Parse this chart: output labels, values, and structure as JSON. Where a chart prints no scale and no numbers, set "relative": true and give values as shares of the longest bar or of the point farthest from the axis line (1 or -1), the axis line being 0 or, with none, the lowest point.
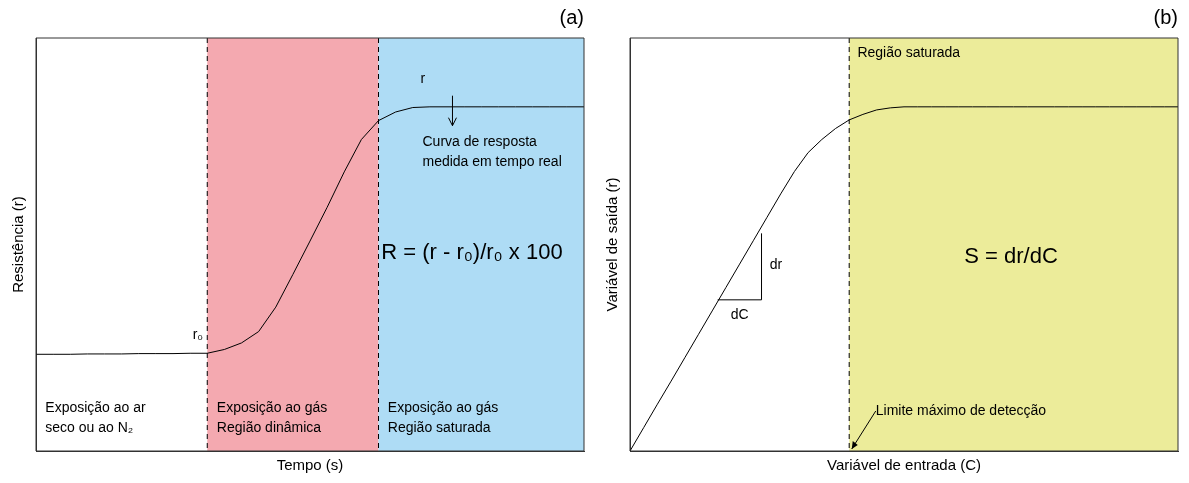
{
  "chart_data": [
    {
      "type": "line",
      "title": "(a)",
      "xlabel": "Tempo (s)",
      "ylabel": "Resistência (r)",
      "relative": true,
      "tick_labels": false,
      "legend": false,
      "marker": "none",
      "line_style": "solid",
      "categories": [
        null,
        null,
        null,
        null,
        null,
        null,
        null,
        null,
        null,
        null,
        null,
        null,
        null,
        null,
        null,
        null,
        null,
        null,
        null,
        null,
        null,
        null,
        null,
        null,
        null,
        null,
        null,
        null,
        null,
        null,
        null,
        null,
        null
      ],
      "series": [
        {
          "color": "#000000",
          "values": [
            0.281,
            0.281,
            0.281,
            0.282,
            0.282,
            0.282,
            0.283,
            0.283,
            0.283,
            0.284,
            0.284,
            0.295,
            0.314,
            0.347,
            0.418,
            0.513,
            0.61,
            0.708,
            0.811,
            0.905,
            0.96,
            0.985,
            0.998,
            1,
            1,
            1,
            1,
            1,
            1,
            1,
            1,
            1,
            1
          ]
        }
      ],
      "annotations": [
        "r₀",
        "r",
        "Curva de resposta\nmedida em tempo real",
        "R = (r - r₀)/r₀ x 100",
        "Exposição ao ar\nseco ou ao N₂",
        "Exposição ao gás\nRegião dinâmica",
        "Exposição ao gás\nRegião saturada"
      ]
    },
    {
      "type": "line",
      "title": "(b)",
      "xlabel": "Variável de entrada (C)",
      "ylabel": "Variável de saída (r)",
      "relative": true,
      "tick_labels": false,
      "legend": false,
      "marker": "none",
      "line_style": "solid",
      "categories": [
        null,
        null,
        null,
        null,
        null,
        null,
        null,
        null,
        null,
        null,
        null,
        null,
        null,
        null,
        null,
        null,
        null,
        null,
        null,
        null,
        null,
        null,
        null,
        null,
        null,
        null,
        null,
        null,
        null,
        null,
        null,
        null,
        null,
        null,
        null,
        null,
        null,
        null,
        null,
        null,
        null
      ],
      "series": [
        {
          "color": "#000000",
          "values": [
            0,
            0.068,
            0.136,
            0.203,
            0.271,
            0.339,
            0.407,
            0.475,
            0.543,
            0.611,
            0.679,
            0.747,
            0.812,
            0.867,
            0.905,
            0.937,
            0.962,
            0.978,
            0.991,
            0.997,
            1,
            1,
            1,
            1,
            1,
            1,
            1,
            1,
            1,
            1,
            1,
            1,
            1,
            1,
            1,
            1,
            1,
            1,
            1,
            1,
            1
          ]
        }
      ],
      "annotations": [
        "dr",
        "dC",
        "S = dr/dC",
        "Limite máximo de detecção",
        "Região saturada"
      ]
    }
  ]
}
